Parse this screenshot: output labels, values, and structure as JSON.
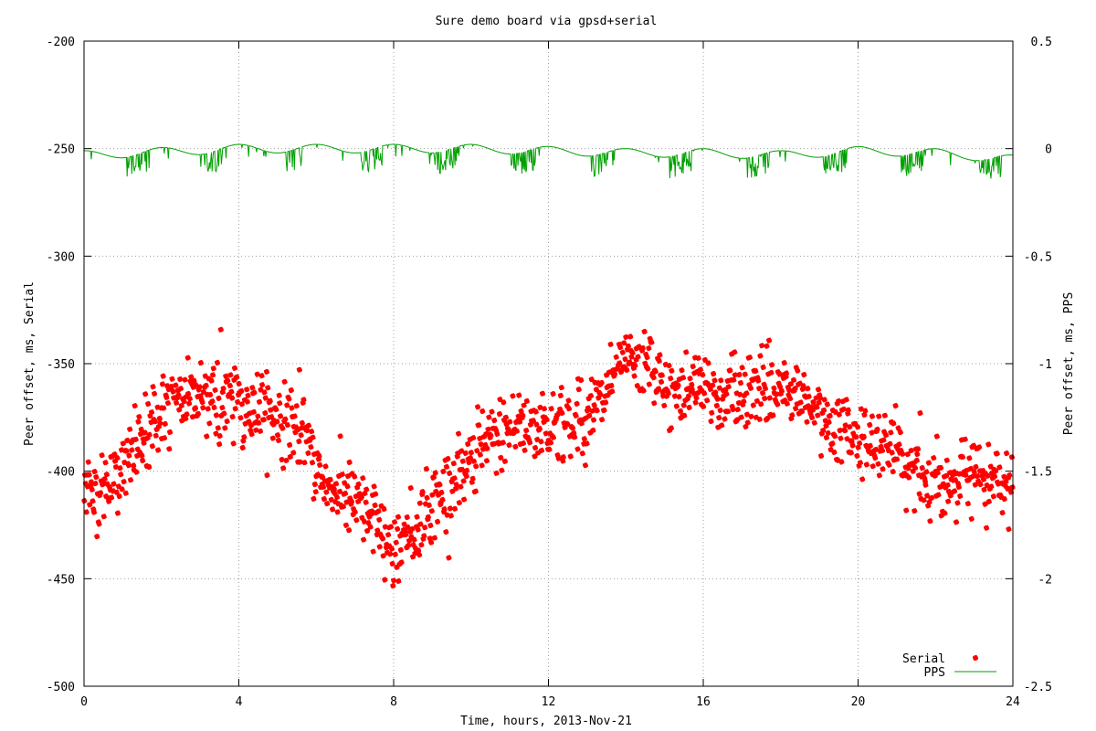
{
  "chart_data": {
    "type": "scatter",
    "title": "Sure demo board via gpsd+serial",
    "xlabel": "Time, hours, 2013-Nov-21",
    "ylabel": "Peer offset, ms, Serial",
    "y2label": "Peer offset, ms, PPS",
    "xlim": [
      0,
      24
    ],
    "ylim": [
      -500,
      -200
    ],
    "y2lim": [
      -2.5,
      0.5
    ],
    "xticks": [
      0,
      4,
      8,
      12,
      16,
      20,
      24
    ],
    "xtick_labels": [
      "0",
      "4",
      "8",
      "12",
      "16",
      "20",
      "24"
    ],
    "yticks": [
      -500,
      -450,
      -400,
      -350,
      -300,
      -250,
      -200
    ],
    "ytick_labels": [
      "-500",
      "-450",
      "-400",
      "-350",
      "-300",
      "-250",
      "-200"
    ],
    "y2ticks": [
      -2.5,
      -2,
      -1.5,
      -1,
      -0.5,
      0,
      0.5
    ],
    "y2tick_labels": [
      "-2.5",
      "-2",
      "-1.5",
      "-1",
      "-0.5",
      "0",
      "0.5"
    ],
    "grid": true,
    "legend_position": "bottom-right",
    "series": [
      {
        "name": "Serial",
        "axis": "left",
        "style": "points",
        "color": "#ff0000",
        "trend": {
          "x": [
            0,
            0.5,
            1,
            1.5,
            2,
            2.5,
            3,
            3.5,
            4,
            4.5,
            5,
            5.5,
            6,
            6.5,
            7,
            7.5,
            8,
            8.5,
            9,
            9.5,
            10,
            10.5,
            11,
            11.5,
            12,
            12.5,
            13,
            13.5,
            14,
            14.5,
            15,
            15.5,
            16,
            16.5,
            17,
            17.5,
            18,
            18.5,
            19,
            19.5,
            20,
            20.5,
            21,
            21.5,
            22,
            22.5,
            23,
            23.5,
            24
          ],
          "y": [
            -405,
            -410,
            -400,
            -385,
            -372,
            -368,
            -362,
            -366,
            -368,
            -372,
            -375,
            -380,
            -400,
            -410,
            -415,
            -425,
            -435,
            -428,
            -415,
            -405,
            -395,
            -385,
            -380,
            -378,
            -380,
            -378,
            -375,
            -365,
            -348,
            -350,
            -362,
            -365,
            -362,
            -365,
            -362,
            -360,
            -360,
            -368,
            -375,
            -378,
            -385,
            -388,
            -393,
            -400,
            -405,
            -403,
            -402,
            -405,
            -410
          ]
        },
        "spread": 12,
        "points_per_hour": 55
      },
      {
        "name": "PPS",
        "axis": "right",
        "style": "line",
        "color": "#00a000",
        "baseline_x": [
          0,
          4,
          6,
          8,
          10,
          12,
          14,
          16,
          18,
          20,
          22,
          24
        ],
        "baseline_y": [
          -0.03,
          0.0,
          0.0,
          0.0,
          0.0,
          -0.01,
          -0.02,
          -0.02,
          -0.03,
          -0.01,
          -0.02,
          -0.05
        ],
        "ripple_amplitude": 0.02,
        "ripple_period_hours": 2,
        "spike_depth": 0.1
      }
    ]
  }
}
